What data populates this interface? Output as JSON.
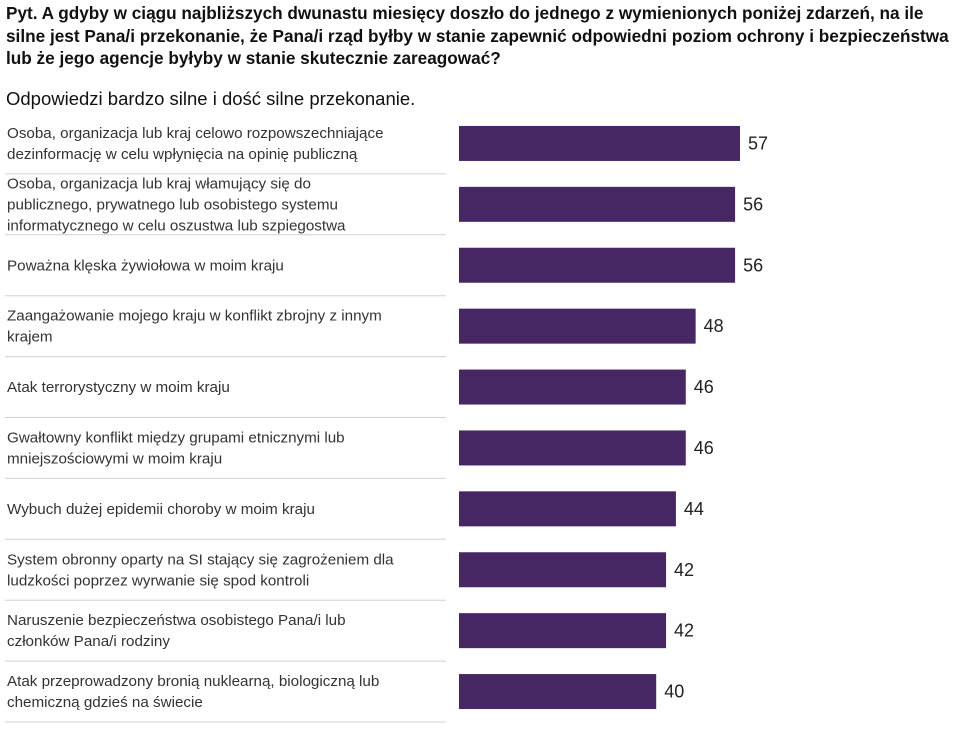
{
  "question": "Pyt. A gdyby w ciągu najbliższych dwunastu miesięcy doszło do jednego z wymienionych poniżej zdarzeń, na ile silne jest Pana/i przekonanie, że Pana/i rząd byłby w stanie zapewnić odpowiedni poziom ochrony i bezpieczeństwa lub że jego agencje byłyby w stanie skutecznie zareagować?",
  "subtitle": "Odpowiedzi bardzo silne i dość silne przekonanie.",
  "chart_data": {
    "type": "bar",
    "orientation": "horizontal",
    "categories": [
      [
        "Osoba, organizacja lub kraj celowo rozpowszechniające",
        "dezinformację w celu wpłynięcia na opinię publiczną"
      ],
      [
        "Osoba, organizacja lub kraj włamujący się do",
        "publicznego, prywatnego lub osobistego systemu",
        "informatycznego w celu oszustwa lub szpiegostwa"
      ],
      [
        "Poważna klęska żywiołowa w moim kraju"
      ],
      [
        "Zaangażowanie mojego kraju w konflikt zbrojny z innym",
        "krajem"
      ],
      [
        "Atak terrorystyczny w moim kraju"
      ],
      [
        "Gwałtowny konflikt między grupami etnicznymi lub",
        "mniejszościowymi w moim kraju"
      ],
      [
        "Wybuch dużej epidemii choroby w moim kraju"
      ],
      [
        "System obronny oparty na SI stający się zagrożeniem dla",
        "ludzkości poprzez wyrwanie się spod kontroli"
      ],
      [
        "Naruszenie bezpieczeństwa osobistego Pana/i lub",
        "członków Pana/i rodziny"
      ],
      [
        "Atak przeprowadzony bronią nuklearną, biologiczną lub",
        "chemiczną gdzieś na świecie"
      ]
    ],
    "values": [
      57,
      56,
      56,
      48,
      46,
      46,
      44,
      42,
      42,
      40
    ],
    "bar_color": "#472664",
    "divider_color": "#d0d0d0",
    "xlim": [
      0,
      100
    ]
  }
}
